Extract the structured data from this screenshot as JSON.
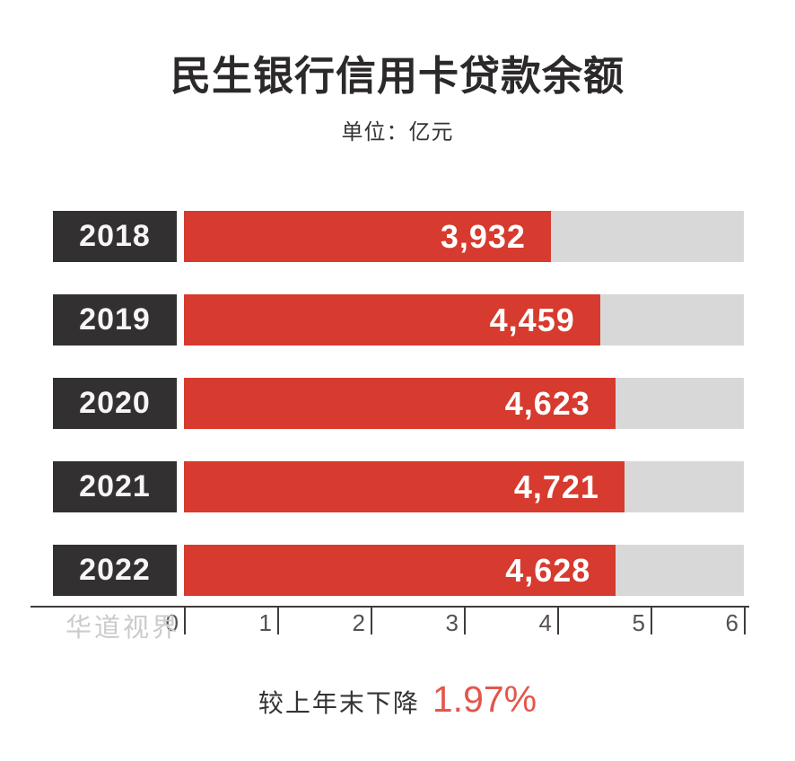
{
  "header": {
    "title": "民生银行信用卡贷款余额",
    "subtitle": "单位：亿元"
  },
  "chart_data": {
    "type": "bar",
    "orientation": "horizontal",
    "title": "民生银行信用卡贷款余额",
    "unit_label": "单位：亿元",
    "categories": [
      "2018",
      "2019",
      "2020",
      "2021",
      "2022"
    ],
    "values": [
      3932,
      4459,
      4623,
      4721,
      4628
    ],
    "value_labels": [
      "3,932",
      "4,459",
      "4,623",
      "4,721",
      "4,628"
    ],
    "xlim": [
      0,
      6000
    ],
    "x_ticks": [
      "0",
      "1",
      "2",
      "3",
      "4",
      "5",
      "6"
    ],
    "x_tick_scale": 1000,
    "grid": false,
    "legend": "none",
    "colors": {
      "bar": "#d73a2e",
      "bar_track": "#d8d8d8",
      "category_box": "#333031",
      "value_text": "#ffffff",
      "axis": "#403b3a"
    }
  },
  "watermark": "华道视界",
  "footnote": {
    "text": "较上年末下降",
    "value": "1.97%",
    "value_color": "#e4564a"
  }
}
